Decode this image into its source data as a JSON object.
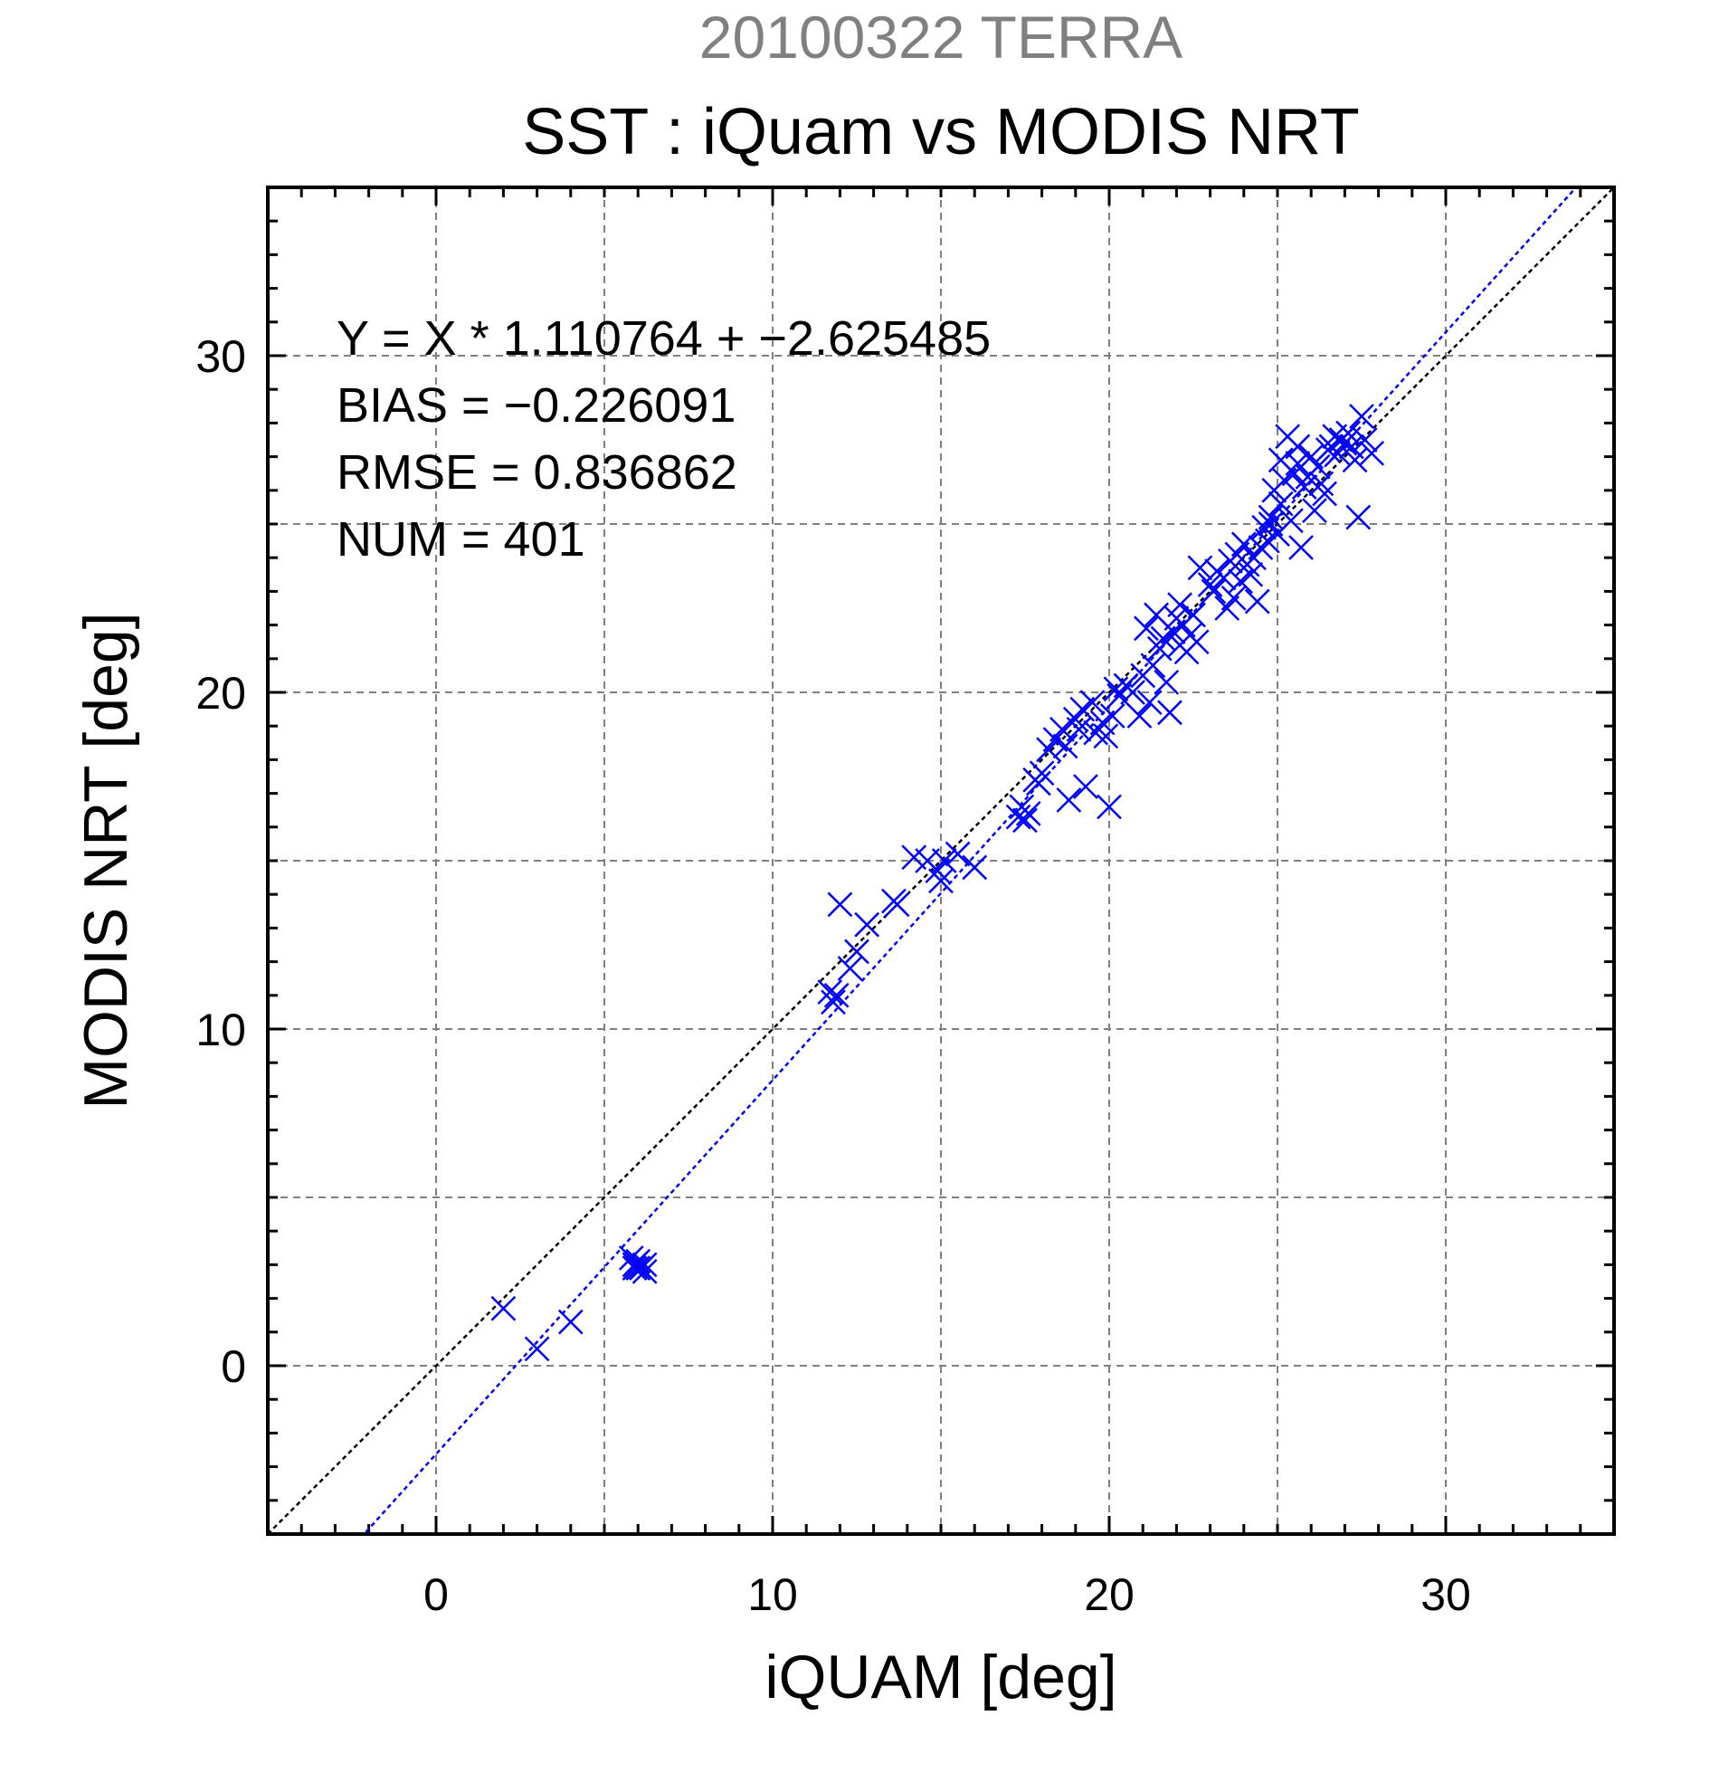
{
  "chart_data": {
    "type": "scatter",
    "suptitle": "20100322 TERRA",
    "title": "SST : iQuam vs MODIS NRT",
    "xlabel": "iQUAM [deg]",
    "ylabel": "MODIS NRT [deg]",
    "xlim": [
      -5,
      35
    ],
    "ylim": [
      -5,
      35
    ],
    "major_ticks": [
      0,
      10,
      20,
      30
    ],
    "major_tick_labels": [
      "0",
      "10",
      "20",
      "30"
    ],
    "minor_tick_step": 1,
    "grid": true,
    "grid_step": 5,
    "colors": {
      "points": "#0000ff",
      "fit_line": "#0000ff",
      "identity_line": "#000000",
      "grid": "#808080"
    },
    "marker": "x",
    "stats": {
      "equation": "Y = X * 1.110764 + −2.625485",
      "bias": "BIAS = −0.226091",
      "rmse": "RMSE = 0.836862",
      "num": "NUM = 401"
    },
    "fit_line": {
      "slope": 1.110764,
      "intercept": -2.625485
    },
    "identity_line": {
      "slope": 1,
      "intercept": 0
    },
    "points": [
      [
        2.0,
        1.7
      ],
      [
        3.0,
        0.5
      ],
      [
        4.0,
        1.3
      ],
      [
        5.8,
        3.2
      ],
      [
        5.9,
        3.0
      ],
      [
        6.0,
        2.9
      ],
      [
        6.1,
        2.9
      ],
      [
        6.2,
        3.0
      ],
      [
        6.0,
        3.1
      ],
      [
        5.9,
        2.9
      ],
      [
        6.2,
        2.8
      ],
      [
        11.7,
        11.1
      ],
      [
        11.8,
        10.8
      ],
      [
        11.9,
        11.0
      ],
      [
        12.0,
        13.7
      ],
      [
        12.3,
        11.8
      ],
      [
        12.5,
        12.3
      ],
      [
        12.8,
        13.1
      ],
      [
        13.6,
        13.8
      ],
      [
        13.7,
        13.7
      ],
      [
        14.2,
        15.1
      ],
      [
        14.6,
        15.0
      ],
      [
        14.9,
        14.7
      ],
      [
        15.0,
        14.4
      ],
      [
        15.1,
        15.0
      ],
      [
        15.5,
        15.2
      ],
      [
        16.0,
        14.8
      ],
      [
        17.3,
        16.3
      ],
      [
        17.4,
        16.6
      ],
      [
        17.5,
        16.2
      ],
      [
        17.6,
        16.4
      ],
      [
        17.8,
        17.4
      ],
      [
        17.9,
        17.3
      ],
      [
        18.0,
        17.6
      ],
      [
        18.2,
        18.3
      ],
      [
        18.4,
        18.6
      ],
      [
        18.6,
        18.9
      ],
      [
        18.7,
        18.4
      ],
      [
        18.8,
        16.8
      ],
      [
        19.0,
        19.2
      ],
      [
        19.1,
        18.9
      ],
      [
        19.2,
        19.5
      ],
      [
        19.3,
        17.2
      ],
      [
        19.5,
        19.7
      ],
      [
        19.6,
        18.8
      ],
      [
        19.8,
        19.1
      ],
      [
        19.9,
        18.7
      ],
      [
        20.0,
        16.6
      ],
      [
        20.1,
        19.3
      ],
      [
        20.2,
        20.1
      ],
      [
        20.3,
        19.9
      ],
      [
        20.5,
        20.2
      ],
      [
        20.7,
        20.0
      ],
      [
        20.9,
        19.3
      ],
      [
        21.0,
        20.5
      ],
      [
        21.1,
        21.9
      ],
      [
        21.2,
        19.7
      ],
      [
        21.3,
        20.8
      ],
      [
        21.4,
        22.3
      ],
      [
        21.5,
        21.3
      ],
      [
        21.6,
        21.6
      ],
      [
        21.7,
        20.3
      ],
      [
        21.8,
        19.4
      ],
      [
        21.9,
        21.8
      ],
      [
        22.0,
        22.2
      ],
      [
        22.1,
        21.4
      ],
      [
        22.2,
        22.0
      ],
      [
        22.3,
        21.2
      ],
      [
        22.4,
        21.7
      ],
      [
        22.5,
        22.3
      ],
      [
        22.6,
        21.5
      ],
      [
        22.7,
        23.7
      ],
      [
        23.0,
        23.2
      ],
      [
        23.2,
        23.6
      ],
      [
        23.4,
        23.4
      ],
      [
        23.5,
        22.5
      ],
      [
        23.6,
        23.9
      ],
      [
        23.7,
        22.8
      ],
      [
        23.8,
        24.1
      ],
      [
        23.9,
        23.3
      ],
      [
        24.0,
        24.4
      ],
      [
        24.1,
        23.8
      ],
      [
        24.2,
        23.5
      ],
      [
        24.3,
        24.0
      ],
      [
        24.4,
        22.7
      ],
      [
        24.5,
        24.3
      ],
      [
        24.6,
        24.9
      ],
      [
        24.7,
        24.5
      ],
      [
        24.8,
        25.0
      ],
      [
        24.9,
        26.0
      ],
      [
        25.0,
        24.7
      ],
      [
        25.1,
        25.6
      ],
      [
        25.2,
        26.3
      ],
      [
        25.3,
        27.6
      ],
      [
        25.4,
        25.1
      ],
      [
        25.5,
        26.5
      ],
      [
        25.6,
        26.8
      ],
      [
        25.7,
        24.3
      ],
      [
        25.8,
        26.1
      ],
      [
        25.9,
        26.4
      ],
      [
        26.0,
        27.0
      ],
      [
        26.1,
        25.4
      ],
      [
        26.2,
        26.7
      ],
      [
        26.3,
        26.2
      ],
      [
        26.4,
        25.9
      ],
      [
        26.5,
        27.2
      ],
      [
        26.6,
        27.3
      ],
      [
        26.7,
        27.6
      ],
      [
        26.8,
        27.1
      ],
      [
        26.9,
        27.5
      ],
      [
        27.0,
        27.4
      ],
      [
        27.1,
        27.7
      ],
      [
        27.2,
        27.3
      ],
      [
        27.3,
        26.9
      ],
      [
        27.4,
        25.2
      ],
      [
        27.5,
        28.2
      ],
      [
        27.6,
        27.5
      ],
      [
        27.8,
        27.1
      ],
      [
        25.1,
        26.9
      ],
      [
        25.6,
        27.3
      ],
      [
        24.8,
        25.2
      ],
      [
        23.1,
        23.0
      ],
      [
        22.1,
        22.6
      ]
    ]
  }
}
